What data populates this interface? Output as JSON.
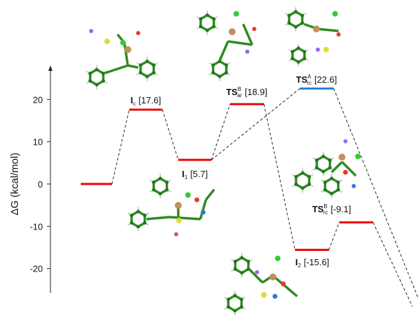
{
  "axis": {
    "label": "ΔG (kcal/mol)",
    "ticks": [
      20,
      10,
      0,
      -10,
      -20
    ],
    "ylim": [
      -25,
      28
    ]
  },
  "colors": {
    "red": "#ee0000",
    "blue": "#2a7fd4",
    "bond": "#2e8b22"
  },
  "levels": [
    {
      "id": "start",
      "main": "",
      "sup": "",
      "sub": "",
      "value": 0,
      "value_text": "",
      "color": "red"
    },
    {
      "id": "Ic",
      "main": "I",
      "sup": "",
      "sub": "c",
      "value": 17.6,
      "value_text": "[17.6]",
      "color": "red"
    },
    {
      "id": "I1",
      "main": "I",
      "sup": "",
      "sub": "1",
      "value": 5.7,
      "value_text": "[5.7]",
      "color": "red"
    },
    {
      "id": "TSarB",
      "main": "TS",
      "sup": "B",
      "sub": "ar",
      "value": 18.9,
      "value_text": "[18.9]",
      "color": "red"
    },
    {
      "id": "TSrcA",
      "main": "TS",
      "sup": "A",
      "sub": "rc",
      "value": 22.6,
      "value_text": "[22.6]",
      "color": "blue"
    },
    {
      "id": "I2",
      "main": "I",
      "sup": "",
      "sub": "2",
      "value": -15.6,
      "value_text": "[-15.6]",
      "color": "red"
    },
    {
      "id": "TSrcB",
      "main": "TS",
      "sup": "B",
      "sub": "rc",
      "value": -9.1,
      "value_text": "[-9.1]",
      "color": "red"
    }
  ]
}
